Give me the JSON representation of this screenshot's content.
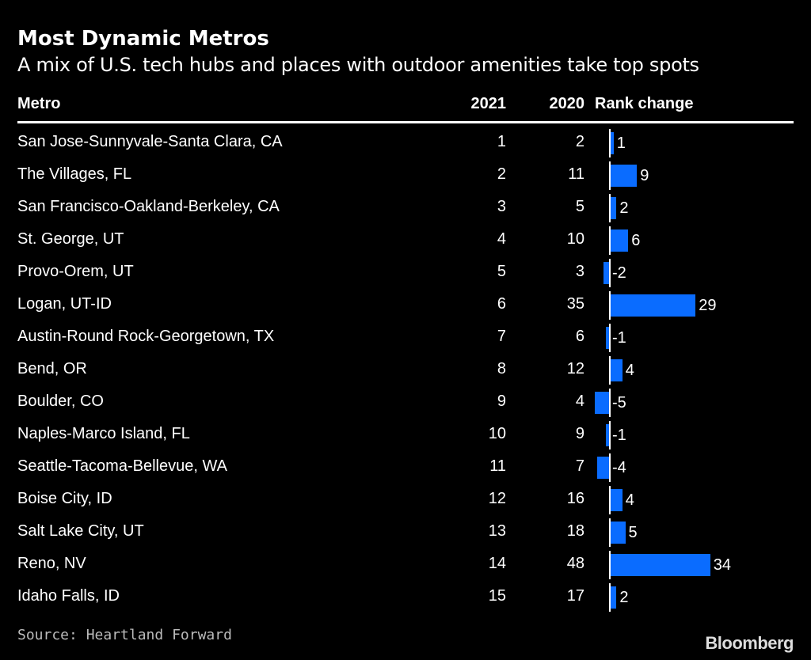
{
  "colors": {
    "bar": "#0a6cff",
    "text": "#ffffff",
    "background": "#000000"
  },
  "chart_data": {
    "type": "table",
    "title": "Most Dynamic Metros",
    "subtitle": "A mix of U.S. tech hubs and places with outdoor amenities take top spots",
    "columns": [
      "Metro",
      "2021",
      "2020",
      "Rank change"
    ],
    "rows": [
      {
        "metro": "San Jose-Sunnyvale-Santa Clara, CA",
        "y2021": "1",
        "y2020": "2",
        "change": 1
      },
      {
        "metro": "The Villages, FL",
        "y2021": "2",
        "y2020": "11",
        "change": 9
      },
      {
        "metro": "San Francisco-Oakland-Berkeley, CA",
        "y2021": "3",
        "y2020": "5",
        "change": 2
      },
      {
        "metro": "St. George, UT",
        "y2021": "4",
        "y2020": "10",
        "change": 6
      },
      {
        "metro": "Provo-Orem, UT",
        "y2021": "5",
        "y2020": "3",
        "change": -2
      },
      {
        "metro": "Logan, UT-ID",
        "y2021": "6",
        "y2020": "35",
        "change": 29
      },
      {
        "metro": "Austin-Round Rock-Georgetown, TX",
        "y2021": "7",
        "y2020": "6",
        "change": -1
      },
      {
        "metro": "Bend, OR",
        "y2021": "8",
        "y2020": "12",
        "change": 4
      },
      {
        "metro": "Boulder, CO",
        "y2021": "9",
        "y2020": "4",
        "change": -5
      },
      {
        "metro": "Naples-Marco Island, FL",
        "y2021": "10",
        "y2020": "9",
        "change": -1
      },
      {
        "metro": "Seattle-Tacoma-Bellevue, WA",
        "y2021": "11",
        "y2020": "7",
        "change": -4
      },
      {
        "metro": "Boise City, ID",
        "y2021": "12",
        "y2020": "16",
        "change": 4
      },
      {
        "metro": "Salt Lake City, UT",
        "y2021": "13",
        "y2020": "18",
        "change": 5
      },
      {
        "metro": "Reno, NV",
        "y2021": "14",
        "y2020": "48",
        "change": 34
      },
      {
        "metro": "Idaho Falls, ID",
        "y2021": "15",
        "y2020": "17",
        "change": 2
      }
    ],
    "source": "Source: Heartland Forward",
    "logo": "Bloomberg"
  }
}
